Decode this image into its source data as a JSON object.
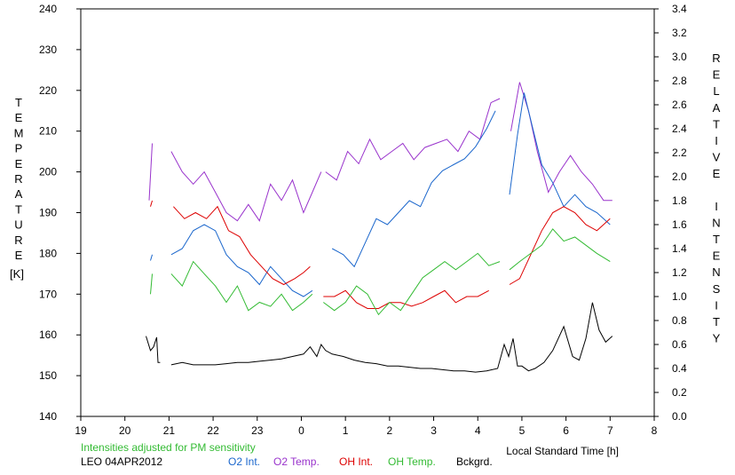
{
  "chart_data": {
    "type": "line",
    "left_axis_label": "TEMPERATURE",
    "left_axis_unit": "[K]",
    "right_axis_label": "RELATIVE INTENSITY",
    "xlabel": "Local Standard Time [h]",
    "note": "Intensities adjusted for PM sensitivity",
    "station_date": "LEO 04APR2012",
    "grid": false,
    "legend_position": "bottom",
    "xlim": [
      19,
      32
    ],
    "ylim_left": [
      140,
      240
    ],
    "ylim_right": [
      0,
      3.4
    ],
    "x_ticks": [
      19,
      20,
      21,
      22,
      23,
      24,
      25,
      26,
      27,
      28,
      29,
      30,
      31,
      32
    ],
    "x_tick_labels": [
      "19",
      "20",
      "21",
      "22",
      "23",
      "0",
      "1",
      "2",
      "3",
      "4",
      "5",
      "6",
      "7",
      "8"
    ],
    "y_left_ticks": [
      140,
      150,
      160,
      170,
      180,
      190,
      200,
      210,
      220,
      230,
      240
    ],
    "y_left_tick_labels": [
      "140",
      "150",
      "160",
      "170",
      "180",
      "190",
      "200",
      "210",
      "220",
      "230",
      "240"
    ],
    "y_right_ticks": [
      0,
      0.2,
      0.4,
      0.6,
      0.8,
      1.0,
      1.2,
      1.4,
      1.6,
      1.8,
      2.0,
      2.2,
      2.4,
      2.6,
      2.8,
      3.0,
      3.2,
      3.4
    ],
    "y_right_tick_labels": [
      "0.0",
      "0.2",
      "0.4",
      "0.6",
      "0.8",
      "1.0",
      "1.2",
      "1.4",
      "1.6",
      "1.8",
      "2.0",
      "2.2",
      "2.4",
      "2.6",
      "2.8",
      "3.0",
      "3.2",
      "3.4"
    ],
    "series": [
      {
        "name": "O2 Temp.",
        "axis": "left",
        "color": "#9933cc",
        "segments": [
          {
            "x": [
              20.55,
              20.62
            ],
            "y": [
              193,
              207
            ]
          },
          {
            "x": [
              21.05,
              21.3,
              21.55,
              21.8,
              22.05,
              22.3,
              22.55,
              22.8,
              23.05,
              23.3,
              23.55,
              23.8,
              24.05,
              24.25,
              24.45
            ],
            "y": [
              205,
              200,
              197,
              200,
              195,
              190,
              188,
              192,
              188,
              197,
              193,
              198,
              190,
              195,
              200
            ]
          },
          {
            "x": [
              24.55,
              24.8,
              25.05,
              25.3,
              25.55,
              25.8,
              26.05,
              26.3,
              26.55,
              26.8,
              27.05,
              27.3,
              27.55,
              27.8,
              28.05,
              28.3,
              28.5
            ],
            "y": [
              200,
              198,
              205,
              202,
              208,
              203,
              205,
              207,
              203,
              206,
              207,
              208,
              205,
              210,
              208,
              217,
              218
            ]
          },
          {
            "x": [
              28.75,
              28.95,
              29.15,
              29.35,
              29.6,
              29.85,
              30.1,
              30.35,
              30.6,
              30.85,
              31.05
            ],
            "y": [
              210,
              222,
              215,
              205,
              195,
              200,
              204,
              200,
              197,
              193,
              193
            ]
          }
        ]
      },
      {
        "name": "O2 Int.",
        "axis": "right",
        "color": "#1a66cc",
        "segments": [
          {
            "x": [
              20.58,
              20.62
            ],
            "y": [
              1.3,
              1.35
            ]
          },
          {
            "x": [
              21.05,
              21.3,
              21.55,
              21.8,
              22.05,
              22.3,
              22.55,
              22.8,
              23.05,
              23.3,
              23.55,
              23.8,
              24.05,
              24.25
            ],
            "y": [
              1.35,
              1.4,
              1.55,
              1.6,
              1.55,
              1.35,
              1.25,
              1.2,
              1.1,
              1.25,
              1.15,
              1.05,
              1.0,
              1.05
            ]
          },
          {
            "x": [
              24.7,
              24.95,
              25.2,
              25.45,
              25.7,
              25.95,
              26.2,
              26.45,
              26.7,
              26.95,
              27.2,
              27.45,
              27.7,
              27.95,
              28.2,
              28.4
            ],
            "y": [
              1.4,
              1.35,
              1.25,
              1.45,
              1.65,
              1.6,
              1.7,
              1.8,
              1.75,
              1.95,
              2.05,
              2.1,
              2.15,
              2.25,
              2.4,
              2.55
            ]
          },
          {
            "x": [
              28.72,
              28.9,
              29.05,
              29.25,
              29.45,
              29.7,
              29.95,
              30.2,
              30.45,
              30.7,
              31.0
            ],
            "y": [
              1.85,
              2.35,
              2.7,
              2.4,
              2.1,
              1.95,
              1.75,
              1.85,
              1.75,
              1.7,
              1.6
            ]
          }
        ]
      },
      {
        "name": "OH Int.",
        "axis": "right",
        "color": "#dd0000",
        "segments": [
          {
            "x": [
              20.58,
              20.62
            ],
            "y": [
              1.75,
              1.8
            ]
          },
          {
            "x": [
              21.1,
              21.35,
              21.6,
              21.85,
              22.1,
              22.35,
              22.6,
              22.85,
              23.1,
              23.35,
              23.6,
              23.85,
              24.05,
              24.2
            ],
            "y": [
              1.75,
              1.65,
              1.7,
              1.65,
              1.75,
              1.55,
              1.5,
              1.35,
              1.25,
              1.15,
              1.1,
              1.15,
              1.2,
              1.25
            ]
          },
          {
            "x": [
              24.5,
              24.75,
              25.0,
              25.25,
              25.5,
              25.75,
              26.0,
              26.25,
              26.5,
              26.75,
              27.0,
              27.25,
              27.5,
              27.75,
              28.0,
              28.25
            ],
            "y": [
              1.0,
              1.0,
              1.05,
              0.95,
              0.9,
              0.9,
              0.95,
              0.95,
              0.92,
              0.95,
              1.0,
              1.05,
              0.95,
              1.0,
              1.0,
              1.05
            ]
          },
          {
            "x": [
              28.72,
              28.95,
              29.2,
              29.45,
              29.7,
              29.95,
              30.2,
              30.45,
              30.7,
              31.0
            ],
            "y": [
              1.1,
              1.15,
              1.35,
              1.55,
              1.7,
              1.75,
              1.7,
              1.6,
              1.55,
              1.65
            ]
          }
        ]
      },
      {
        "name": "OH Temp.",
        "axis": "left",
        "color": "#33bb33",
        "segments": [
          {
            "x": [
              20.58,
              20.62
            ],
            "y": [
              170,
              175
            ]
          },
          {
            "x": [
              21.05,
              21.3,
              21.55,
              21.8,
              22.05,
              22.3,
              22.55,
              22.8,
              23.05,
              23.3,
              23.55,
              23.8,
              24.05,
              24.25
            ],
            "y": [
              175,
              172,
              178,
              175,
              172,
              168,
              172,
              166,
              168,
              167,
              170,
              166,
              168,
              170
            ]
          },
          {
            "x": [
              24.5,
              24.75,
              25.0,
              25.25,
              25.5,
              25.75,
              26.0,
              26.25,
              26.5,
              26.75,
              27.0,
              27.25,
              27.5,
              27.75,
              28.0,
              28.25,
              28.5
            ],
            "y": [
              168,
              166,
              168,
              172,
              170,
              165,
              168,
              166,
              170,
              174,
              176,
              178,
              176,
              178,
              180,
              177,
              178
            ]
          },
          {
            "x": [
              28.72,
              28.95,
              29.2,
              29.45,
              29.7,
              29.95,
              30.2,
              30.45,
              30.7,
              31.0
            ],
            "y": [
              176,
              178,
              180,
              182,
              186,
              183,
              184,
              182,
              180,
              178
            ]
          }
        ]
      },
      {
        "name": "Bckgrd.",
        "axis": "right",
        "color": "#000000",
        "segments": [
          {
            "x": [
              20.48,
              20.58,
              20.65,
              20.72,
              20.75,
              20.8
            ],
            "y": [
              0.67,
              0.55,
              0.58,
              0.66,
              0.45,
              0.45
            ]
          },
          {
            "x": [
              21.05,
              21.3,
              21.55,
              21.8,
              22.05,
              22.3,
              22.55,
              22.8,
              23.05,
              23.3,
              23.55,
              23.8,
              24.05,
              24.2,
              24.35,
              24.45,
              24.55,
              24.7,
              24.95,
              25.2,
              25.45,
              25.7,
              25.95,
              26.2,
              26.45,
              26.7,
              26.95,
              27.2,
              27.45,
              27.7,
              27.95,
              28.2,
              28.45,
              28.6,
              28.7,
              28.8,
              28.9,
              29.0,
              29.15,
              29.3,
              29.5,
              29.7,
              29.95,
              30.15,
              30.3,
              30.45,
              30.6,
              30.75,
              30.9,
              31.05
            ],
            "y": [
              0.43,
              0.45,
              0.43,
              0.43,
              0.43,
              0.44,
              0.45,
              0.45,
              0.46,
              0.47,
              0.48,
              0.5,
              0.52,
              0.58,
              0.5,
              0.6,
              0.55,
              0.52,
              0.5,
              0.47,
              0.45,
              0.44,
              0.42,
              0.42,
              0.41,
              0.4,
              0.4,
              0.39,
              0.38,
              0.38,
              0.37,
              0.38,
              0.4,
              0.6,
              0.5,
              0.65,
              0.42,
              0.42,
              0.38,
              0.4,
              0.45,
              0.55,
              0.75,
              0.5,
              0.47,
              0.65,
              0.95,
              0.72,
              0.62,
              0.67
            ]
          }
        ]
      }
    ]
  }
}
